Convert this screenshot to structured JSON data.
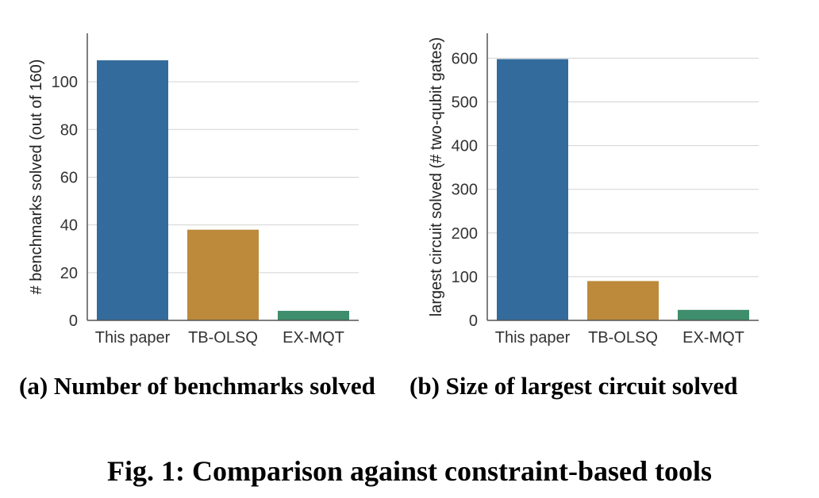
{
  "figure": {
    "caption": "Fig. 1: Comparison against constraint-based tools",
    "subcaptions": [
      "(a) Number of benchmarks solved",
      "(b) Size of largest circuit solved"
    ]
  },
  "colors": {
    "this_paper": "#336b9c",
    "tb_olsq": "#bd8a3b",
    "ex_mqt": "#3e8d6c",
    "grid": "#d3d3d3",
    "axis": "#555555"
  },
  "chart_data": [
    {
      "type": "bar",
      "title": "",
      "xlabel": "",
      "ylabel": "# benchmarks solved (out of 160)",
      "categories": [
        "This paper",
        "TB-OLSQ",
        "EX-MQT"
      ],
      "values": [
        109,
        38,
        4
      ],
      "ylim": [
        0,
        115
      ],
      "yticks": [
        0,
        20,
        40,
        60,
        80,
        100
      ],
      "grid": true
    },
    {
      "type": "bar",
      "title": "",
      "xlabel": "",
      "ylabel": "largest circuit solved (# two-qubit gates)",
      "categories": [
        "This paper",
        "TB-OLSQ",
        "EX-MQT"
      ],
      "values": [
        598,
        90,
        24
      ],
      "ylim": [
        0,
        628
      ],
      "yticks": [
        0,
        100,
        200,
        300,
        400,
        500,
        600
      ],
      "grid": true
    }
  ]
}
